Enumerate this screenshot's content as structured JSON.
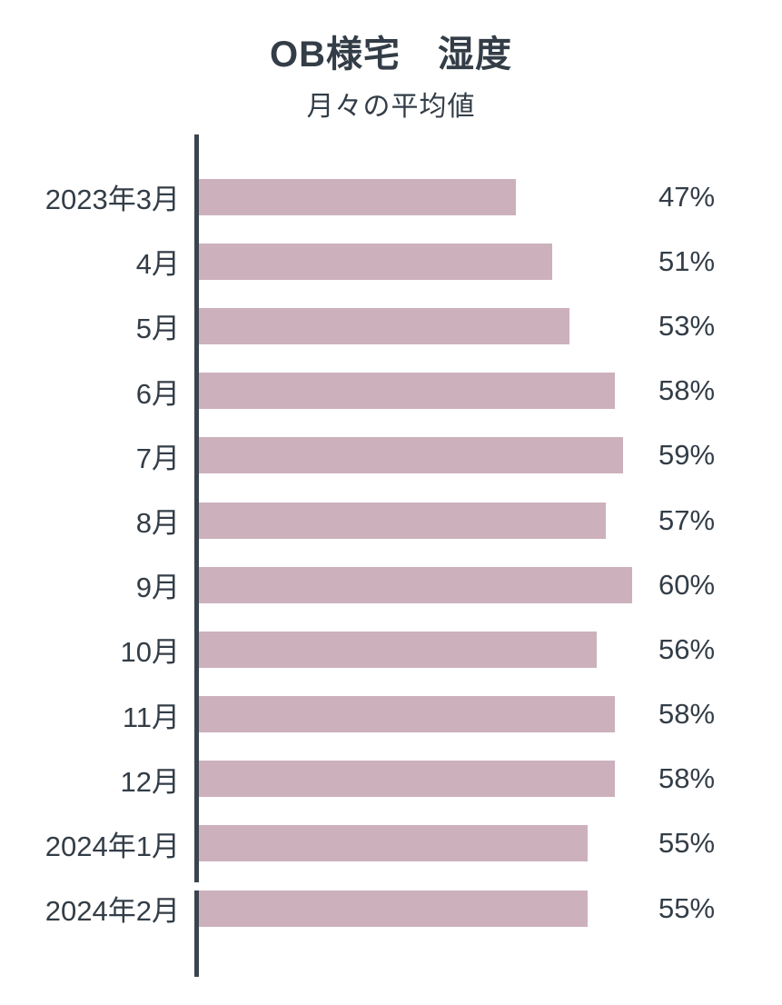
{
  "header": {
    "title": "OB様宅　湿度",
    "subtitle": "月々の平均値"
  },
  "chart_data": {
    "type": "bar",
    "orientation": "horizontal",
    "title": "OB様宅　湿度",
    "subtitle": "月々の平均値",
    "unit": "%",
    "categories": [
      "2023年3月",
      "4月",
      "5月",
      "6月",
      "7月",
      "8月",
      "9月",
      "10月",
      "11月",
      "12月",
      "2024年1月",
      "2024年2月"
    ],
    "values": [
      47,
      51,
      53,
      58,
      59,
      57,
      60,
      56,
      58,
      58,
      55,
      55
    ],
    "value_labels": [
      "47%",
      "51%",
      "53%",
      "58%",
      "59%",
      "57%",
      "60%",
      "56%",
      "58%",
      "58%",
      "55%",
      "55%"
    ],
    "xlim": [
      11.5,
      61.5
    ],
    "grid": false,
    "legend": "none",
    "bar_color": "#ccb1bd",
    "axis_color": "#3a444e",
    "text_color": "#333d47",
    "background_color": "#ffffff"
  }
}
